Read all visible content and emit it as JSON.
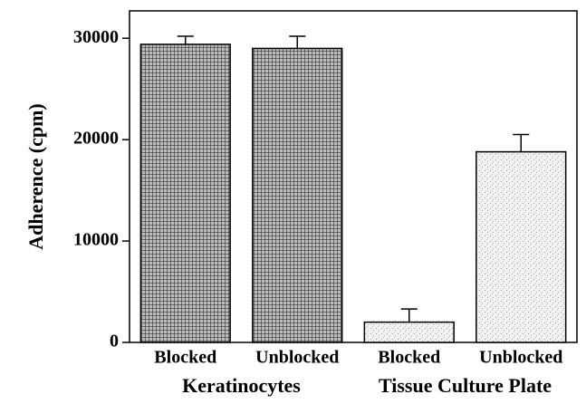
{
  "chart_data": {
    "type": "bar",
    "y_label": "Adherence (cpm)",
    "groups": [
      {
        "name": "Keratinocytes",
        "categories": [
          "Blocked",
          "Unblocked"
        ],
        "color": "#5a5a5a"
      },
      {
        "name": "Tissue Culture Plate",
        "categories": [
          "Blocked",
          "Unblocked"
        ],
        "color": "#e4e4e4"
      }
    ],
    "values": [
      29400,
      29000,
      2000,
      18800
    ],
    "errors": [
      800,
      1200,
      1300,
      1700
    ],
    "ylim": [
      0,
      32700
    ],
    "yticks": [
      0,
      10000,
      20000,
      30000
    ]
  }
}
